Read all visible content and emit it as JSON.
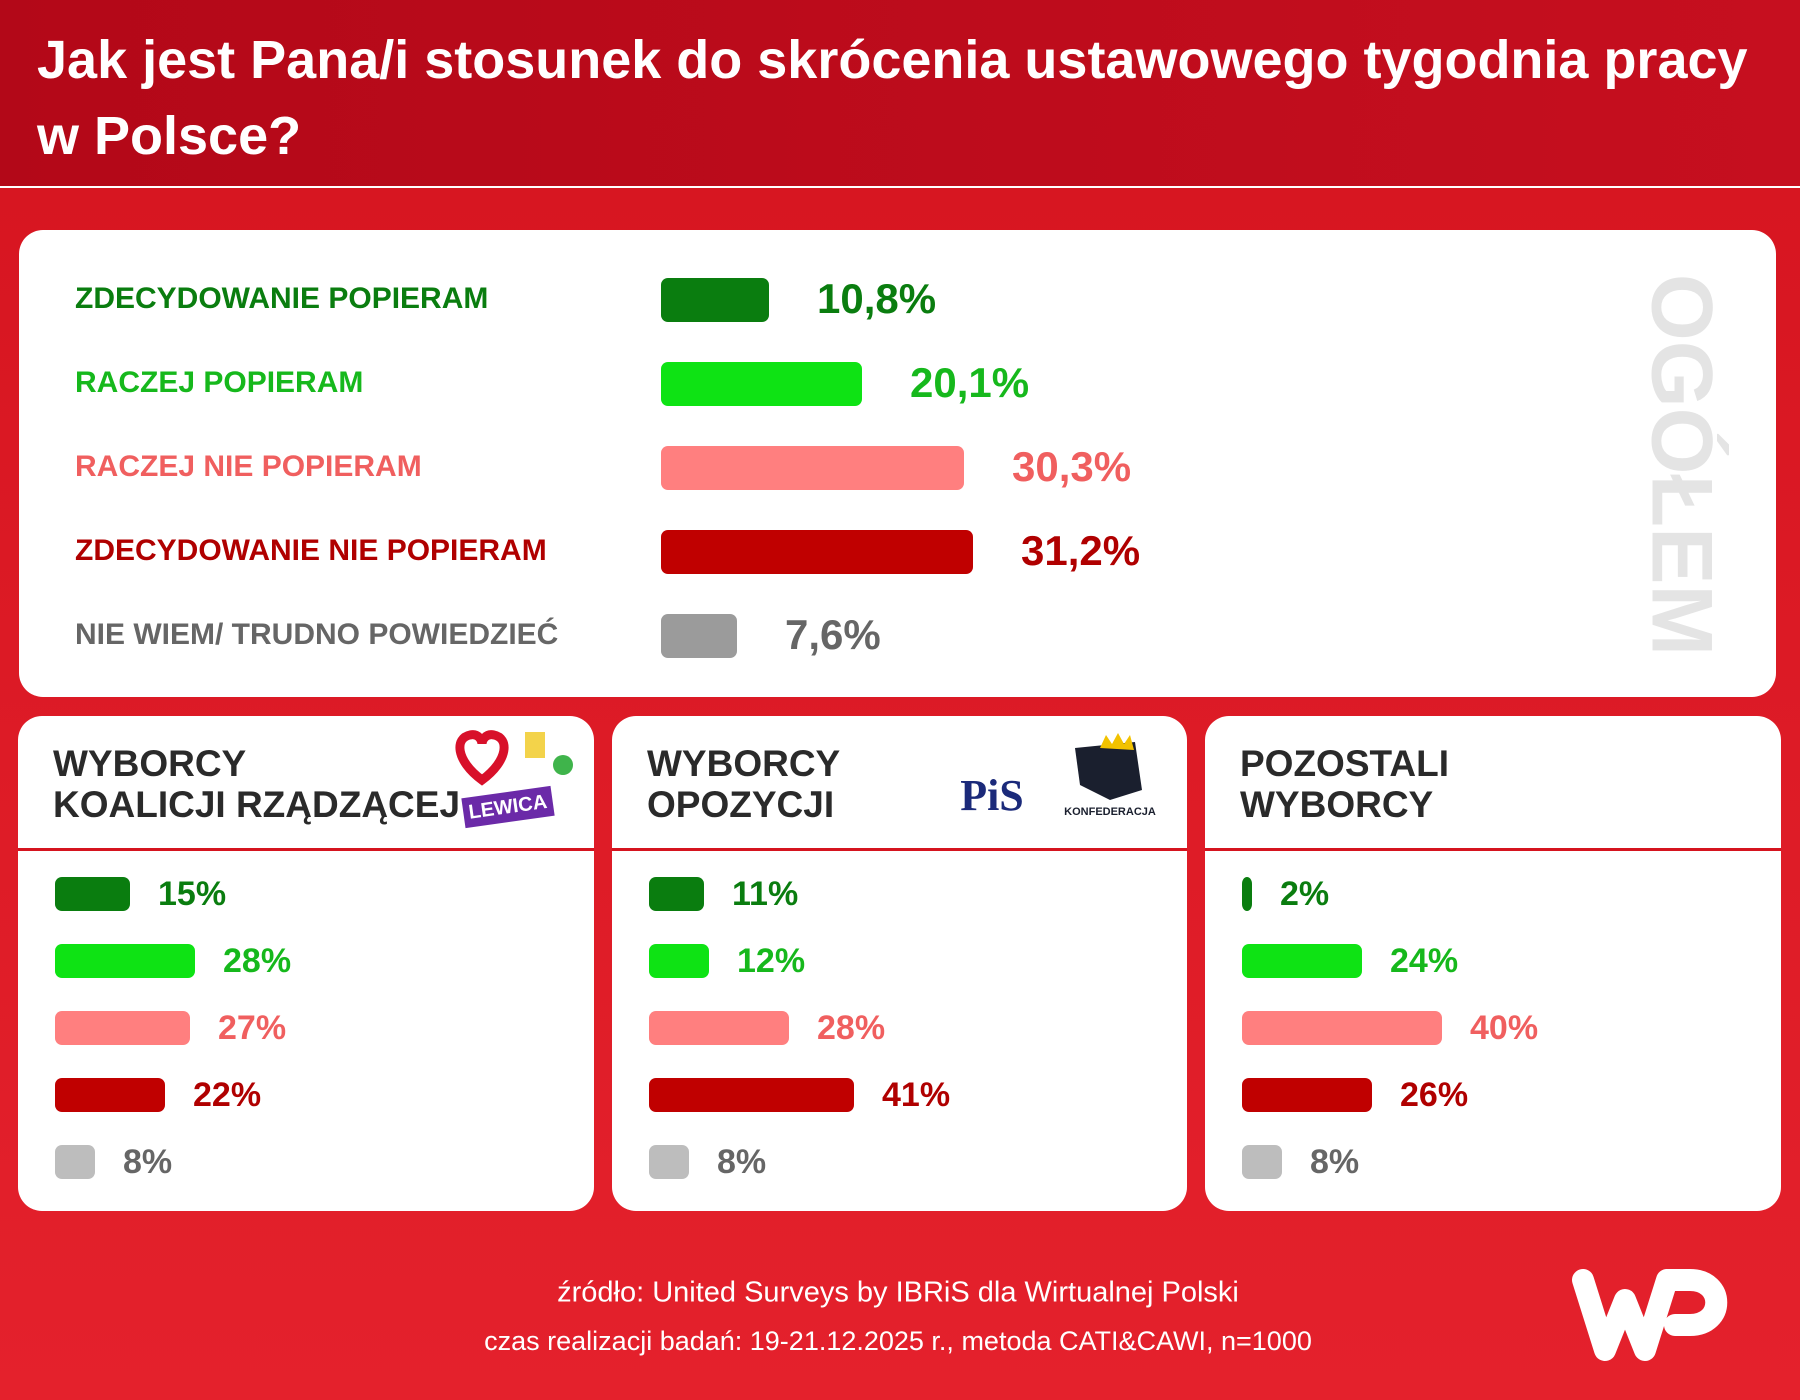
{
  "title": "Jak jest Pana/i stosunek do skrócenia ustawowego tygodnia pracy w Polsce?",
  "footer": [
    "źródło: United Surveys by IBRiS dla Wirtualnej Polski",
    "czas realizacji badań: 19-21.12.2025 r., metoda CATI&CAWI, n=1000"
  ],
  "chart_data": [
    {
      "type": "bar",
      "orientation": "horizontal",
      "title": "OGÓŁEM",
      "categories": [
        "ZDECYDOWANIE POPIERAM",
        "RACZEJ POPIERAM",
        "RACZEJ NIE POPIERAM",
        "ZDECYDOWANIE NIE POPIERAM",
        "NIE WIEM/ TRUDNO POWIEDZIEĆ"
      ],
      "values": [
        10.8,
        20.1,
        30.3,
        31.2,
        7.6
      ],
      "value_labels": [
        "10,8%",
        "20,1%",
        "30,3%",
        "31,2%",
        "7,6%"
      ],
      "colors": [
        "#0a7d0f",
        "#0ee314",
        "#ff7f7f",
        "#c00000",
        "#9b9b9b"
      ],
      "text_colors": [
        "#0a7d0f",
        "#16b81c",
        "#f05f5f",
        "#b00000",
        "#666666"
      ]
    },
    {
      "type": "bar",
      "orientation": "horizontal",
      "title": "WYBORCY KOALICJI RZĄDZĄCEJ",
      "logos": [
        "LEWICA"
      ],
      "values": [
        15,
        28,
        27,
        22,
        8
      ],
      "value_labels": [
        "15%",
        "28%",
        "27%",
        "22%",
        "8%"
      ],
      "colors": [
        "#0a7d0f",
        "#0ee314",
        "#ff7f7f",
        "#c00000",
        "#bdbdbd"
      ],
      "text_colors": [
        "#0a7d0f",
        "#16b81c",
        "#f05f5f",
        "#b00000",
        "#666666"
      ]
    },
    {
      "type": "bar",
      "orientation": "horizontal",
      "title": "WYBORCY OPOZYCJI",
      "logos": [
        "PiS",
        "KONFEDERACJA"
      ],
      "values": [
        11,
        12,
        28,
        41,
        8
      ],
      "value_labels": [
        "11%",
        "12%",
        "28%",
        "41%",
        "8%"
      ],
      "colors": [
        "#0a7d0f",
        "#0ee314",
        "#ff7f7f",
        "#c00000",
        "#bdbdbd"
      ],
      "text_colors": [
        "#0a7d0f",
        "#16b81c",
        "#f05f5f",
        "#b00000",
        "#666666"
      ]
    },
    {
      "type": "bar",
      "orientation": "horizontal",
      "title": "POZOSTALI WYBORCY",
      "values": [
        2,
        24,
        40,
        26,
        8
      ],
      "value_labels": [
        "2%",
        "24%",
        "40%",
        "26%",
        "8%"
      ],
      "colors": [
        "#0a7d0f",
        "#0ee314",
        "#ff7f7f",
        "#c00000",
        "#bdbdbd"
      ],
      "text_colors": [
        "#0a7d0f",
        "#16b81c",
        "#f05f5f",
        "#b00000",
        "#666666"
      ]
    }
  ]
}
